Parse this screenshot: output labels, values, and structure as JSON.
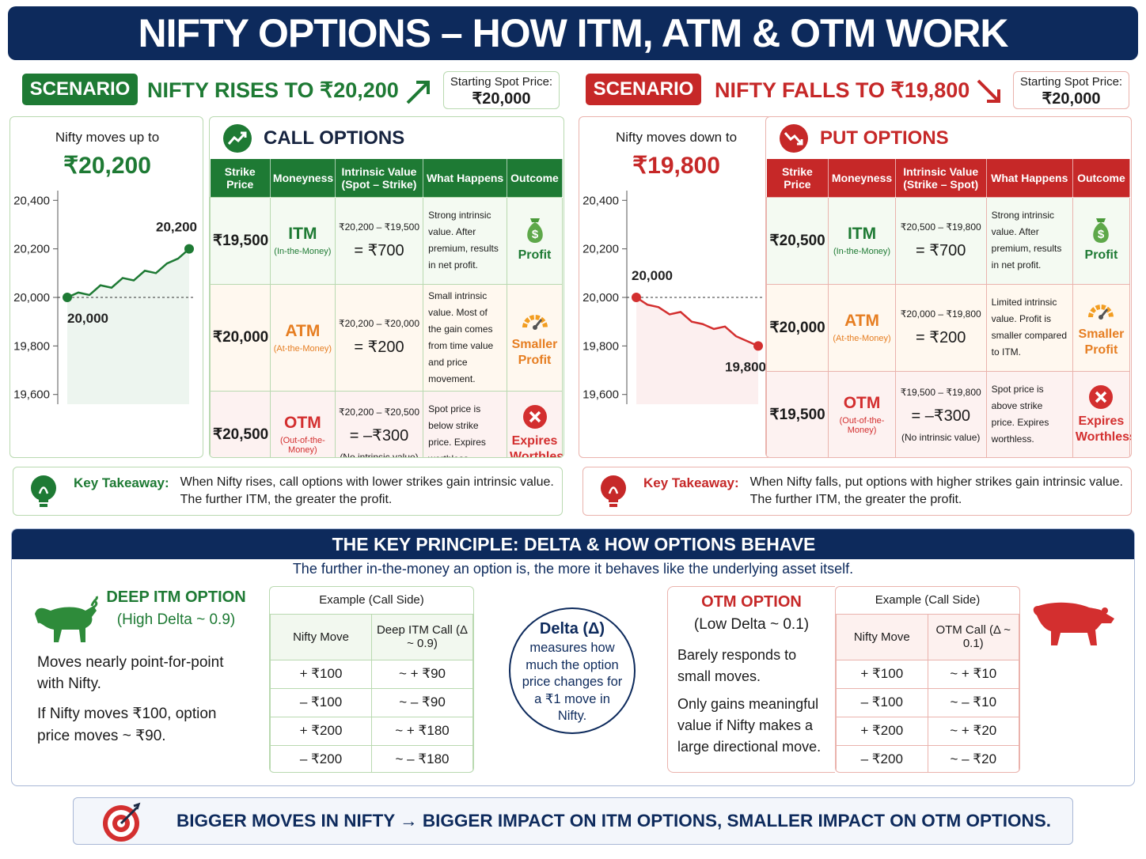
{
  "title": "NIFTY OPTIONS – HOW ITM, ATM & OTM WORK",
  "scenarios": [
    {
      "badge": "SCENARIO 1:",
      "headline": "NIFTY RISES TO ₹20,200",
      "spot_label": "Starting Spot Price:",
      "spot_value": "₹20,000",
      "move_label": "Nifty moves up to",
      "move_value": "₹20,200",
      "options_title": "CALL OPTIONS",
      "columns": [
        "Strike Price",
        "Moneyness",
        "Intrinsic Value (Spot – Strike)",
        "What Happens",
        "Outcome"
      ],
      "rows": [
        {
          "strike": "₹19,500",
          "moneyness": "ITM",
          "moneyness_full": "(In-the-Money)",
          "calc": "₹20,200 – ₹19,500",
          "result": "= ₹700",
          "happens": "Strong intrinsic value. After premium, results in net profit.",
          "outcome": "Profit"
        },
        {
          "strike": "₹20,000",
          "moneyness": "ATM",
          "moneyness_full": "(At-the-Money)",
          "calc": "₹20,200 – ₹20,000",
          "result": "= ₹200",
          "happens": "Small intrinsic value. Most of the gain comes from time value and price movement.",
          "outcome": "Smaller Profit"
        },
        {
          "strike": "₹20,500",
          "moneyness": "OTM",
          "moneyness_full": "(Out-of-the-Money)",
          "calc": "₹20,200 – ₹20,500",
          "result": "= –₹300",
          "note": "(No intrinsic value)",
          "happens": "Spot price is below strike price. Expires worthless.",
          "outcome": "Expires Worthless"
        }
      ],
      "takeaway_label": "Key Takeaway:",
      "takeaway": "When Nifty rises, call options with lower strikes gain intrinsic value.",
      "takeaway2": "The further ITM, the greater the profit."
    },
    {
      "badge": "SCENARIO 2:",
      "headline": "NIFTY FALLS TO ₹19,800",
      "spot_label": "Starting Spot Price:",
      "spot_value": "₹20,000",
      "move_label": "Nifty moves down to",
      "move_value": "₹19,800",
      "options_title": "PUT OPTIONS",
      "columns": [
        "Strike Price",
        "Moneyness",
        "Intrinsic Value (Strike – Spot)",
        "What Happens",
        "Outcome"
      ],
      "rows": [
        {
          "strike": "₹20,500",
          "moneyness": "ITM",
          "moneyness_full": "(In-the-Money)",
          "calc": "₹20,500 – ₹19,800",
          "result": "= ₹700",
          "happens": "Strong intrinsic value. After premium, results in net profit.",
          "outcome": "Profit"
        },
        {
          "strike": "₹20,000",
          "moneyness": "ATM",
          "moneyness_full": "(At-the-Money)",
          "calc": "₹20,000 – ₹19,800",
          "result": "= ₹200",
          "happens": "Limited intrinsic value. Profit is smaller compared to ITM.",
          "outcome": "Smaller Profit"
        },
        {
          "strike": "₹19,500",
          "moneyness": "OTM",
          "moneyness_full": "(Out-of-the-Money)",
          "calc": "₹19,500 – ₹19,800",
          "result": "= –₹300",
          "note": "(No intrinsic value)",
          "happens": "Spot price is above strike price. Expires worthless.",
          "outcome": "Expires Worthless"
        }
      ],
      "takeaway_label": "Key Takeaway:",
      "takeaway": "When Nifty falls, put options with higher strikes gain intrinsic value.",
      "takeaway2": "The further ITM, the greater the profit."
    }
  ],
  "chart_data": [
    {
      "type": "line",
      "categories": [
        null,
        null,
        null,
        null,
        null,
        null,
        null,
        null,
        null,
        null,
        null,
        null
      ],
      "series": [
        {
          "color": "#1e7a34",
          "values": [
            20000,
            20020,
            20010,
            20050,
            20040,
            20080,
            20070,
            20110,
            20100,
            20140,
            20160,
            20200
          ],
          "value_labels": [
            "20,000",
            null,
            null,
            null,
            null,
            null,
            null,
            null,
            null,
            null,
            null,
            "20,200"
          ]
        }
      ],
      "ylim": [
        19560,
        20440
      ],
      "yticks": [
        {
          "value": 19600,
          "label": "19,600"
        },
        {
          "value": 19800,
          "label": "19,800"
        },
        {
          "value": 20000,
          "label": "20,000"
        },
        {
          "value": 20200,
          "label": "20,200"
        },
        {
          "value": 20400,
          "label": "20,400"
        }
      ],
      "reference_line": 20000
    },
    {
      "type": "line",
      "categories": [
        null,
        null,
        null,
        null,
        null,
        null,
        null,
        null,
        null,
        null,
        null,
        null
      ],
      "series": [
        {
          "color": "#d32f2f",
          "values": [
            20000,
            19970,
            19960,
            19930,
            19940,
            19900,
            19890,
            19870,
            19880,
            19840,
            19820,
            19800
          ],
          "value_labels": [
            "20,000",
            null,
            null,
            null,
            null,
            null,
            null,
            null,
            null,
            null,
            null,
            "19,800"
          ]
        }
      ],
      "ylim": [
        19560,
        20440
      ],
      "yticks": [
        {
          "value": 19600,
          "label": "19,600"
        },
        {
          "value": 19800,
          "label": "19,800"
        },
        {
          "value": 20000,
          "label": "20,000"
        },
        {
          "value": 20200,
          "label": "20,200"
        },
        {
          "value": 20400,
          "label": "20,400"
        }
      ],
      "reference_line": 20000
    }
  ],
  "principle": {
    "heading": "THE KEY PRINCIPLE: DELTA & HOW OPTIONS BEHAVE",
    "subtitle": "The further in-the-money an option is, the more it behaves like the underlying asset itself.",
    "itm": {
      "title": "DEEP ITM OPTION",
      "delta": "(High Delta ~ 0.9)",
      "text1": "Moves nearly point-for-point with Nifty.",
      "text2": "If Nifty moves ₹100, option price moves ~ ₹90."
    },
    "itm_table": {
      "caption": "Example (Call Side)",
      "columns": [
        "Nifty Move",
        "Deep ITM Call (Δ ~ 0.9)"
      ],
      "rows": [
        [
          "+ ₹100",
          "~ + ₹90"
        ],
        [
          "– ₹100",
          "~ – ₹90"
        ],
        [
          "+ ₹200",
          "~ + ₹180"
        ],
        [
          "– ₹200",
          "~ – ₹180"
        ]
      ]
    },
    "delta": {
      "title": "Delta (Δ)",
      "text": "measures how much the option price changes for a ₹1 move in Nifty."
    },
    "otm": {
      "title": "OTM OPTION",
      "delta": "(Low Delta ~ 0.1)",
      "text1": "Barely responds to small moves.",
      "text2": "Only gains meaningful value if Nifty makes a large directional move."
    },
    "otm_table": {
      "caption": "Example (Call Side)",
      "columns": [
        "Nifty Move",
        "OTM Call (Δ ~ 0.1)"
      ],
      "rows": [
        [
          "+ ₹100",
          "~ + ₹10"
        ],
        [
          "– ₹100",
          "~ – ₹10"
        ],
        [
          "+ ₹200",
          "~ + ₹20"
        ],
        [
          "– ₹200",
          "~ – ₹20"
        ]
      ]
    }
  },
  "footer": "BIGGER MOVES IN NIFTY → BIGGER IMPACT ON ITM OPTIONS, SMALLER IMPACT ON OTM OPTIONS."
}
